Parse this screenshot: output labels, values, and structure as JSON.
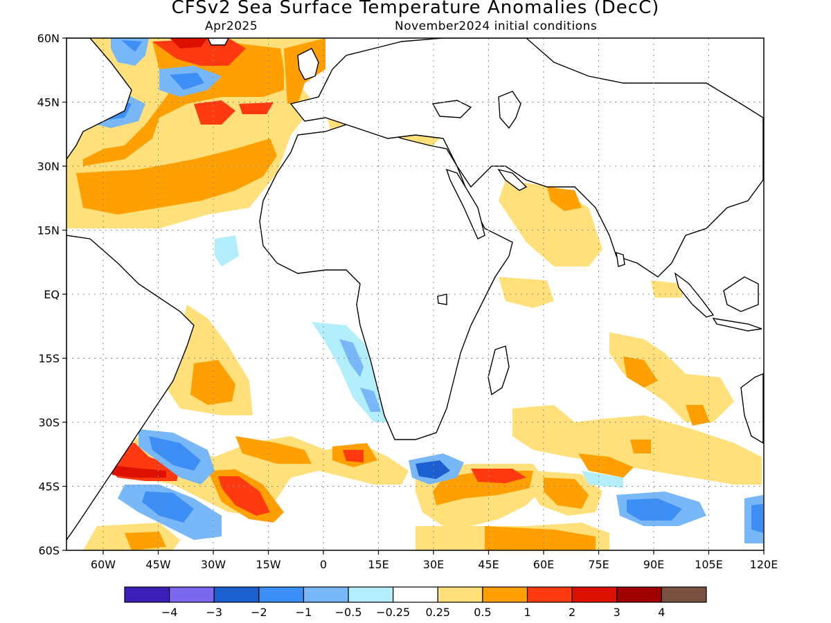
{
  "header": {
    "title": "CFSv2 Sea Surface Temperature Anomalies (DecC)",
    "target_month": "Apr2025",
    "init": "November2024 initial conditions"
  },
  "map": {
    "lon_range": [
      -70,
      120
    ],
    "lat_range": [
      -60,
      60
    ],
    "lat_ticks": [
      {
        "lat": 60,
        "label": "60N"
      },
      {
        "lat": 45,
        "label": "45N"
      },
      {
        "lat": 30,
        "label": "30N"
      },
      {
        "lat": 15,
        "label": "15N"
      },
      {
        "lat": 0,
        "label": "EQ"
      },
      {
        "lat": -15,
        "label": "15S"
      },
      {
        "lat": -30,
        "label": "30S"
      },
      {
        "lat": -45,
        "label": "45S"
      },
      {
        "lat": -60,
        "label": "60S"
      }
    ],
    "lon_ticks": [
      {
        "lon": -60,
        "label": "60W"
      },
      {
        "lon": -45,
        "label": "45W"
      },
      {
        "lon": -30,
        "label": "30W"
      },
      {
        "lon": -15,
        "label": "15W"
      },
      {
        "lon": 0,
        "label": "0"
      },
      {
        "lon": 15,
        "label": "15E"
      },
      {
        "lon": 30,
        "label": "30E"
      },
      {
        "lon": 45,
        "label": "45E"
      },
      {
        "lon": 60,
        "label": "60E"
      },
      {
        "lon": 75,
        "label": "75E"
      },
      {
        "lon": 90,
        "label": "90E"
      },
      {
        "lon": 105,
        "label": "105E"
      },
      {
        "lon": 120,
        "label": "120E"
      }
    ],
    "grid": true
  },
  "colorbar": {
    "colors": [
      "#3b1fb8",
      "#7b68ee",
      "#1c5fd0",
      "#3d8ff5",
      "#78b7f8",
      "#b2eefb",
      "#ffffff",
      "#ffe07a",
      "#ffa000",
      "#ff3a10",
      "#dd1000",
      "#a00000",
      "#7a5040"
    ],
    "labels": [
      "-4",
      "-3",
      "-2",
      "-1",
      "-0.5",
      "-0.25",
      "0.25",
      "0.5",
      "1",
      "2",
      "3",
      "4"
    ]
  }
}
